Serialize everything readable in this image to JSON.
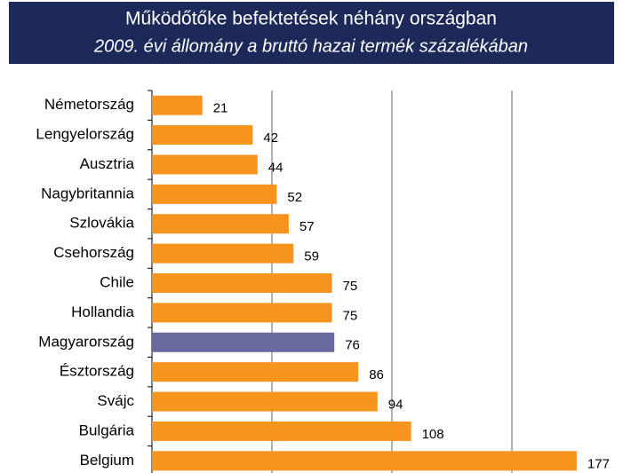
{
  "chart_data": {
    "type": "hbar",
    "title": "Működőtőke befektetések néhány országban",
    "subtitle": "2009. évi állomány a bruttó hazai termék százalékában",
    "categories": [
      "Németország",
      "Lengyelország",
      "Ausztria",
      "Nagybritannia",
      "Szlovákia",
      "Csehország",
      "Chile",
      "Hollandia",
      "Magyarország",
      "Észtország",
      "Svájc",
      "Bulgária",
      "Belgium"
    ],
    "values": [
      21,
      42,
      44,
      52,
      57,
      59,
      75,
      75,
      76,
      86,
      94,
      108,
      177
    ],
    "colors": [
      "#f7941d",
      "#f7941d",
      "#f7941d",
      "#f7941d",
      "#f7941d",
      "#f7941d",
      "#f7941d",
      "#f7941d",
      "#6a6a9f",
      "#f7941d",
      "#f7941d",
      "#f7941d",
      "#f7941d"
    ],
    "xlim": [
      0,
      190
    ],
    "xticks": [
      0,
      50,
      100,
      150
    ],
    "grid": true
  }
}
